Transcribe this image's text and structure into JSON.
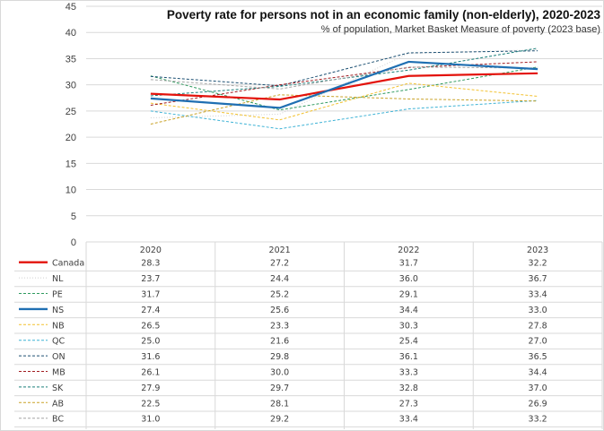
{
  "chart_data": {
    "type": "line",
    "title": "Poverty rate for persons not in an economic family (non-elderly),  2020-2023",
    "subtitle": "% of population, Market Basket Measure of poverty (2023 base)",
    "xlabel": "",
    "ylabel": "",
    "categories": [
      "2020",
      "2021",
      "2022",
      "2023"
    ],
    "ylim": [
      0,
      45
    ],
    "yticks": [
      0,
      5,
      10,
      15,
      20,
      25,
      30,
      35,
      40,
      45
    ],
    "grid": true,
    "legend": "data-table-below",
    "series": [
      {
        "name": "Canada",
        "values": [
          28.3,
          27.2,
          31.7,
          32.2
        ],
        "color": "#e3120b",
        "style": "solid-thick"
      },
      {
        "name": "NL",
        "values": [
          23.7,
          24.4,
          36.0,
          36.7
        ],
        "color": "#d0d0d0",
        "style": "dotted"
      },
      {
        "name": "PE",
        "values": [
          31.7,
          25.2,
          29.1,
          33.4
        ],
        "color": "#2e9a5e",
        "style": "dashed"
      },
      {
        "name": "NS",
        "values": [
          27.4,
          25.6,
          34.4,
          33.0
        ],
        "color": "#1f6fb2",
        "style": "solid-thick"
      },
      {
        "name": "NB",
        "values": [
          26.5,
          23.3,
          30.3,
          27.8
        ],
        "color": "#f2c12e",
        "style": "dashed"
      },
      {
        "name": "QC",
        "values": [
          25.0,
          21.6,
          25.4,
          27.0
        ],
        "color": "#3fb3d6",
        "style": "dashed"
      },
      {
        "name": "ON",
        "values": [
          31.6,
          29.8,
          36.1,
          36.5
        ],
        "color": "#1b4f72",
        "style": "dashed"
      },
      {
        "name": "MB",
        "values": [
          26.1,
          30.0,
          33.3,
          34.4
        ],
        "color": "#a11d21",
        "style": "dashed"
      },
      {
        "name": "SK",
        "values": [
          27.9,
          29.7,
          32.8,
          37.0
        ],
        "color": "#1a7f7a",
        "style": "dashed"
      },
      {
        "name": "AB",
        "values": [
          22.5,
          28.1,
          27.3,
          26.9
        ],
        "color": "#c9a227",
        "style": "dashed"
      },
      {
        "name": "BC",
        "values": [
          31.0,
          29.2,
          33.4,
          33.2
        ],
        "color": "#a6a6a6",
        "style": "dashed"
      }
    ]
  }
}
